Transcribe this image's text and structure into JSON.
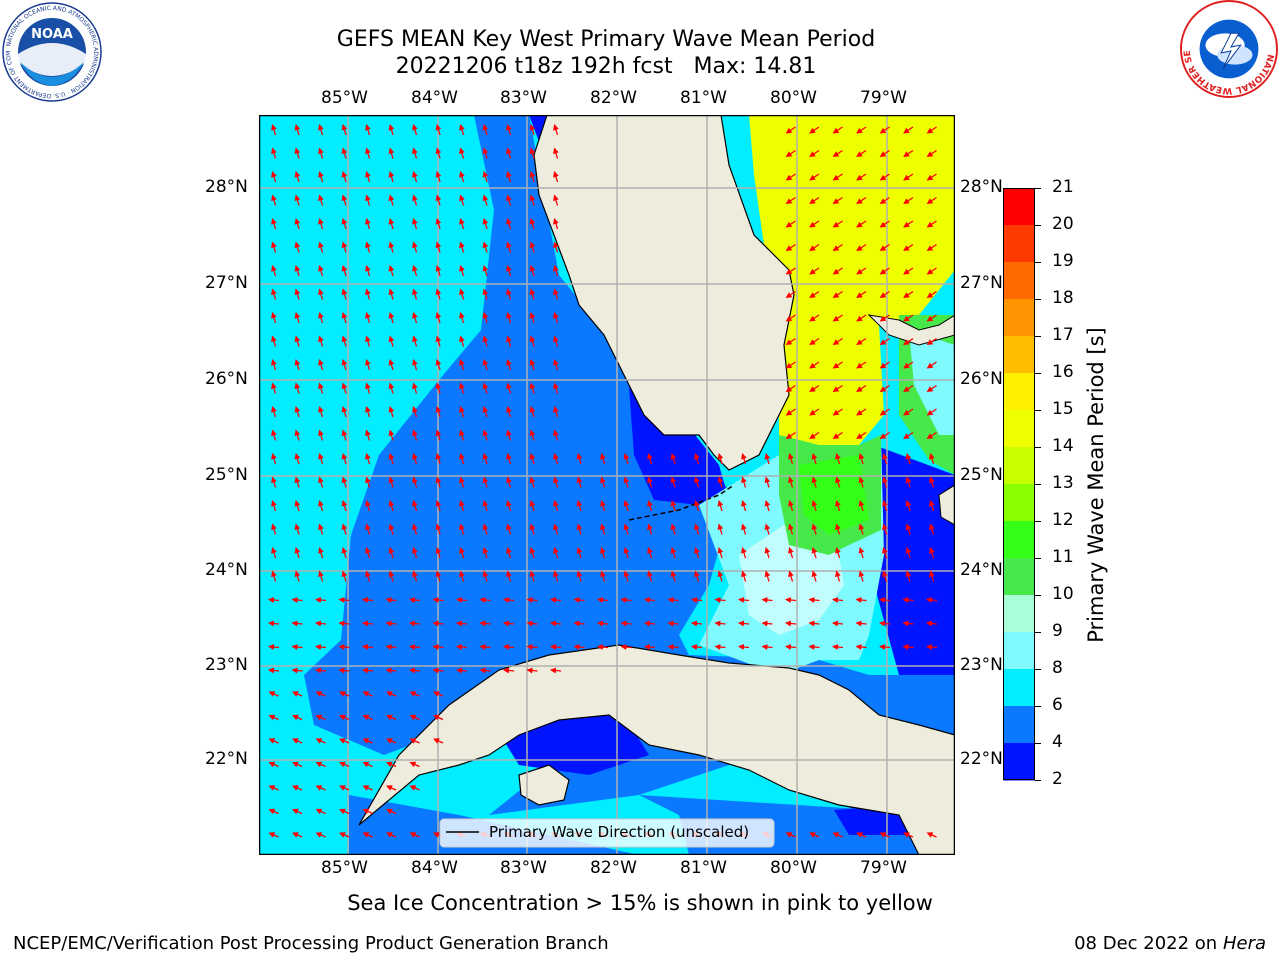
{
  "header": {
    "title_line1": "GEFS MEAN Key West Primary Wave Mean Period",
    "title_line2": "20221206 t18z 192h fcst   Max: 14.81"
  },
  "logos": {
    "left_name": "noaa-logo",
    "left_text": "NOAA",
    "left_ring_text": "NATIONAL OCEANIC AND ATMOSPHERIC ADMINISTRATION · U.S. DEPARTMENT OF COMMERCE",
    "right_name": "nws-logo",
    "right_ring_text": "NATIONAL WEATHER SERVICE"
  },
  "map": {
    "lon_labels": [
      "85°W",
      "84°W",
      "83°W",
      "82°W",
      "81°W",
      "80°W",
      "79°W"
    ],
    "lat_labels": [
      "28°N",
      "27°N",
      "26°N",
      "25°N",
      "24°N",
      "23°N",
      "22°N"
    ],
    "colors": {
      "land": "#eeecdc",
      "deep_blue": "#0014ff",
      "blue": "#0a78ff",
      "cyan": "#00eeff",
      "light_cyan": "#7ffbff",
      "pale_cyan": "#c2fdfd",
      "green": "#46e84a",
      "bright_green": "#33ff18",
      "yellow": "#eeff00",
      "arrow": "#ff0000",
      "grid": "#b0b0b0"
    },
    "legend_label": "Primary Wave Direction (unscaled)"
  },
  "colorbar": {
    "label": "Primary Wave Mean Period [s]",
    "ticks": [
      "21",
      "20",
      "19",
      "18",
      "17",
      "16",
      "15",
      "14",
      "13",
      "12",
      "11",
      "10",
      "9",
      "8",
      "6",
      "4",
      "2"
    ],
    "colors": [
      "#ff0000",
      "#ff3a00",
      "#ff6a00",
      "#ff9500",
      "#ffbe00",
      "#fff000",
      "#eeff00",
      "#c8ff00",
      "#8aff00",
      "#33ff18",
      "#46e84a",
      "#a8ffd8",
      "#7ffbff",
      "#00eeff",
      "#0a78ff",
      "#0014ff"
    ]
  },
  "footer": {
    "note": "Sea Ice Concentration > 15% is shown in pink to yellow",
    "credit": "NCEP/EMC/Verification Post Processing Product Generation Branch",
    "date": "08 Dec 2022 on",
    "machine": "Hera"
  }
}
